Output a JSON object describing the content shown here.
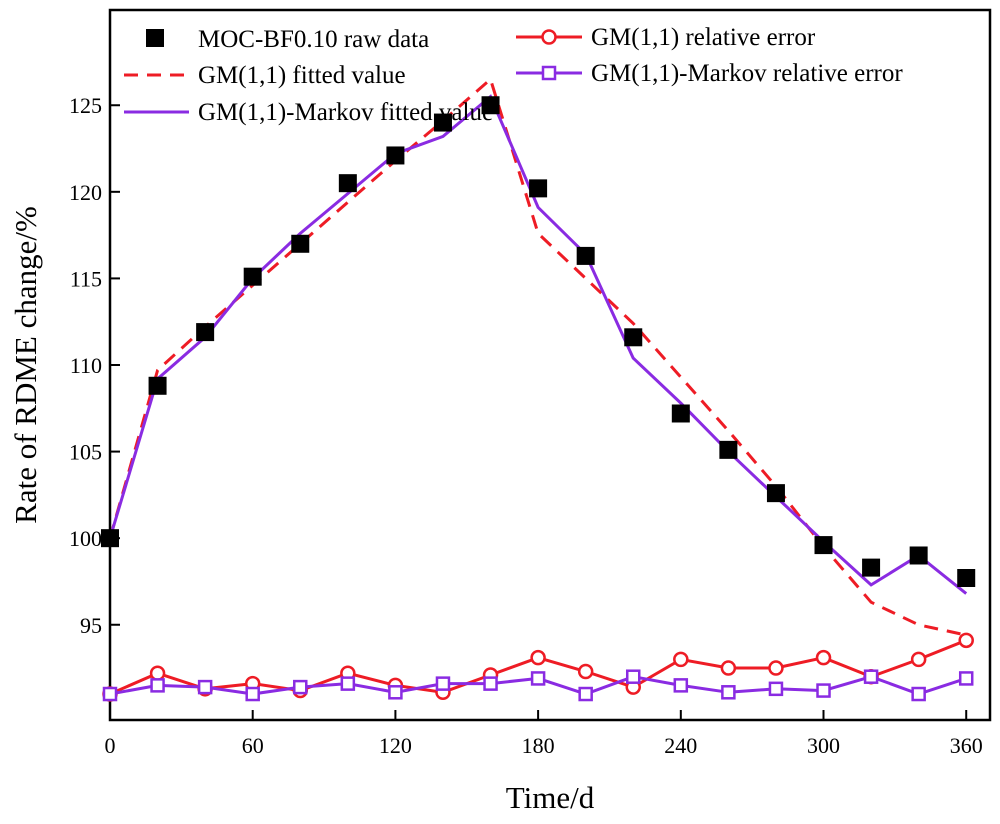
{
  "chart_data": {
    "type": "line",
    "title": "",
    "xlabel": "Time/d",
    "ylabel": "Rate of RDME change/%",
    "xlim": [
      0,
      370
    ],
    "ylim": [
      89.5,
      130.5
    ],
    "xticks": [
      0,
      60,
      120,
      180,
      240,
      300,
      360
    ],
    "yticks": [
      95,
      100,
      105,
      110,
      115,
      120,
      125
    ],
    "grid": false,
    "legend_position": "top",
    "series": [
      {
        "name": "MOC-BF0.10 raw data",
        "style": "square-markers",
        "color": "#000000",
        "x": [
          0,
          20,
          40,
          60,
          80,
          100,
          120,
          140,
          160,
          180,
          200,
          220,
          240,
          260,
          280,
          300,
          320,
          340,
          360
        ],
        "values": [
          100.0,
          108.8,
          111.9,
          115.1,
          117.0,
          120.5,
          122.1,
          124.0,
          125.0,
          120.2,
          116.3,
          111.6,
          107.2,
          105.1,
          102.6,
          99.6,
          98.3,
          99.0,
          97.7
        ]
      },
      {
        "name": "GM(1,1) fitted value",
        "style": "dashed-line",
        "color": "#ee1c25",
        "x": [
          0,
          20,
          40,
          60,
          80,
          100,
          120,
          140,
          160,
          180,
          200,
          220,
          240,
          260,
          280,
          300,
          320,
          340,
          360
        ],
        "values": [
          100.0,
          109.7,
          112.2,
          114.6,
          117.0,
          119.4,
          121.8,
          124.1,
          126.5,
          117.6,
          115.0,
          112.4,
          109.3,
          106.2,
          103.0,
          99.5,
          96.3,
          95.0,
          94.4
        ]
      },
      {
        "name": "GM(1,1)-Markov fitted value",
        "style": "solid-line",
        "color": "#8a2be2",
        "x": [
          0,
          20,
          40,
          60,
          80,
          100,
          120,
          140,
          160,
          180,
          200,
          220,
          240,
          260,
          280,
          300,
          320,
          340,
          360
        ],
        "values": [
          100.0,
          109.2,
          111.6,
          115.0,
          117.6,
          119.9,
          122.2,
          123.2,
          125.5,
          119.1,
          116.4,
          110.4,
          107.8,
          105.0,
          102.4,
          99.8,
          97.3,
          99.0,
          96.8
        ]
      },
      {
        "name": "GM(1,1) relative error",
        "style": "line-circle-markers",
        "color": "#ee1c25",
        "x": [
          0,
          20,
          40,
          60,
          80,
          100,
          120,
          140,
          160,
          180,
          200,
          220,
          240,
          260,
          280,
          300,
          320,
          340,
          360
        ],
        "values": [
          91.0,
          92.2,
          91.3,
          91.6,
          91.2,
          92.2,
          91.5,
          91.1,
          92.1,
          93.1,
          92.3,
          91.4,
          93.0,
          92.5,
          92.5,
          93.1,
          92.0,
          93.0,
          94.1
        ]
      },
      {
        "name": "GM(1,1)-Markov relative error",
        "style": "line-square-markers",
        "color": "#8a2be2",
        "x": [
          0,
          20,
          40,
          60,
          80,
          100,
          120,
          140,
          160,
          180,
          200,
          220,
          240,
          260,
          280,
          300,
          320,
          340,
          360
        ],
        "values": [
          91.0,
          91.5,
          91.4,
          91.0,
          91.4,
          91.6,
          91.1,
          91.6,
          91.6,
          91.9,
          91.0,
          92.0,
          91.5,
          91.1,
          91.3,
          91.2,
          92.0,
          91.0,
          91.9
        ]
      }
    ]
  }
}
